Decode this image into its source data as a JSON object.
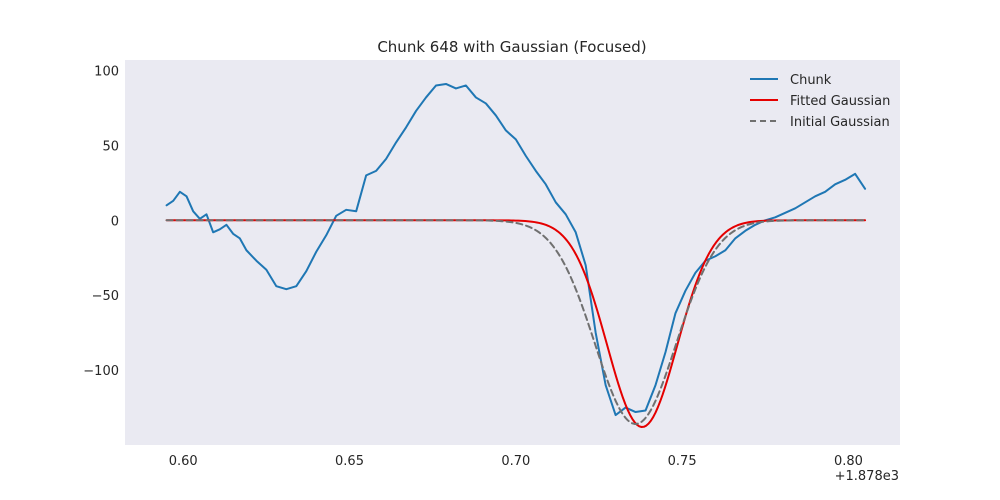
{
  "chart_data": {
    "type": "line",
    "title": "Chunk 648 with Gaussian (Focused)",
    "xlabel": "",
    "ylabel": "",
    "x_offset_label": "+1.878e3",
    "xlim": [
      0.5825,
      0.8155
    ],
    "ylim": [
      -150,
      107
    ],
    "xticks": [
      0.6,
      0.65,
      0.7,
      0.75,
      0.8
    ],
    "xtick_labels": [
      "0.60",
      "0.65",
      "0.70",
      "0.75",
      "0.80"
    ],
    "yticks": [
      100,
      50,
      0,
      -50,
      -100
    ],
    "ytick_labels": [
      "100",
      "50",
      "0",
      "−50",
      "−100"
    ],
    "grid": false,
    "background": "#eaeaf2",
    "legend": {
      "position": "top-right"
    },
    "series": [
      {
        "name": "Chunk",
        "color": "#1f77b4",
        "style": "solid",
        "x": [
          0.595,
          0.597,
          0.599,
          0.601,
          0.603,
          0.605,
          0.607,
          0.609,
          0.611,
          0.613,
          0.615,
          0.617,
          0.619,
          0.622,
          0.625,
          0.628,
          0.631,
          0.634,
          0.637,
          0.64,
          0.643,
          0.646,
          0.649,
          0.652,
          0.655,
          0.658,
          0.661,
          0.664,
          0.667,
          0.67,
          0.673,
          0.676,
          0.679,
          0.682,
          0.685,
          0.688,
          0.691,
          0.694,
          0.697,
          0.7,
          0.703,
          0.706,
          0.709,
          0.712,
          0.715,
          0.718,
          0.721,
          0.724,
          0.727,
          0.73,
          0.733,
          0.736,
          0.739,
          0.742,
          0.745,
          0.748,
          0.751,
          0.754,
          0.757,
          0.76,
          0.763,
          0.766,
          0.769,
          0.772,
          0.775,
          0.778,
          0.781,
          0.784,
          0.787,
          0.79,
          0.793,
          0.796,
          0.799,
          0.802,
          0.805
        ],
        "y": [
          10,
          13,
          19,
          16,
          6,
          1,
          4,
          -8,
          -6,
          -3,
          -9,
          -12,
          -20,
          -27,
          -33,
          -44,
          -46,
          -44,
          -34,
          -21,
          -10,
          3,
          7,
          6,
          30,
          33,
          41,
          52,
          62,
          73,
          82,
          90,
          91,
          88,
          90,
          82,
          78,
          70,
          60,
          54,
          43,
          33,
          24,
          12,
          4,
          -8,
          -30,
          -75,
          -110,
          -130,
          -125,
          -128,
          -127,
          -110,
          -88,
          -62,
          -47,
          -35,
          -27,
          -24,
          -20,
          -12,
          -7,
          -3,
          0,
          2,
          5,
          8,
          12,
          16,
          19,
          24,
          27,
          31,
          21
        ]
      },
      {
        "name": "Fitted Gaussian",
        "color": "#e50000",
        "style": "solid",
        "amplitude": -138,
        "mean": 0.738,
        "sigma": 0.0105
      },
      {
        "name": "Initial Gaussian",
        "color": "#707070",
        "style": "dashed",
        "amplitude": -136,
        "mean": 0.736,
        "sigma": 0.0122
      }
    ]
  }
}
